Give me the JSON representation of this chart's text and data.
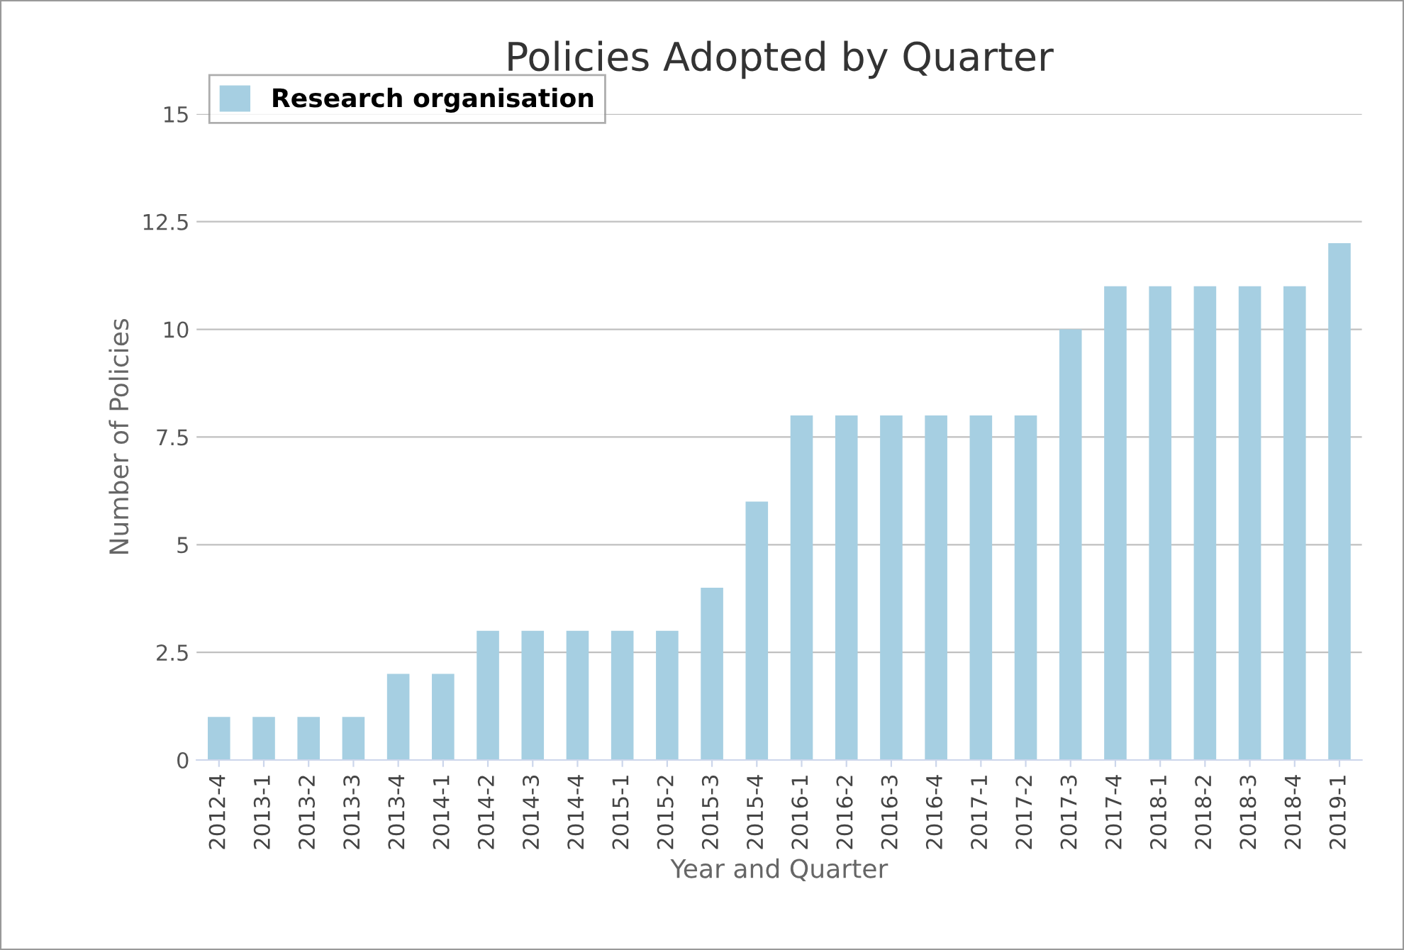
{
  "chart_data": {
    "type": "bar",
    "title": "Policies Adopted by Quarter",
    "xlabel": "Year and Quarter",
    "ylabel": "Number of Policies",
    "categories": [
      "2012-4",
      "2013-1",
      "2013-2",
      "2013-3",
      "2013-4",
      "2014-1",
      "2014-2",
      "2014-3",
      "2014-4",
      "2015-1",
      "2015-2",
      "2015-3",
      "2015-4",
      "2016-1",
      "2016-2",
      "2016-3",
      "2016-4",
      "2017-1",
      "2017-2",
      "2017-3",
      "2017-4",
      "2018-1",
      "2018-2",
      "2018-3",
      "2018-4",
      "2019-1"
    ],
    "series": [
      {
        "name": "Research organisation",
        "color": "#a6cfe2",
        "values": [
          1,
          1,
          1,
          1,
          2,
          2,
          3,
          3,
          3,
          3,
          3,
          4,
          6,
          8,
          8,
          8,
          8,
          8,
          8,
          10,
          11,
          11,
          11,
          11,
          11,
          12
        ]
      }
    ],
    "ylim": [
      0,
      15
    ],
    "yticks": [
      0,
      2.5,
      5,
      7.5,
      10,
      12.5,
      15
    ],
    "grid": "y",
    "legend": "top left"
  }
}
